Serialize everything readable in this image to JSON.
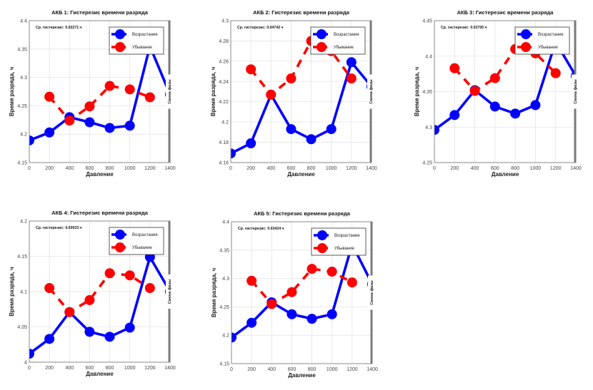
{
  "colors": {
    "increasing": "#0000ff",
    "decreasing": "#ff0000",
    "phase_line": "#7a7a7a",
    "grid": "#e3e3e3"
  },
  "chart_data": [
    {
      "type": "line",
      "title": "АКБ 1: Гистерезис времени разряда",
      "xlabel": "Давление",
      "ylabel": "Время разряда, ч",
      "xlim": [
        0,
        1400
      ],
      "ylim": [
        4.15,
        4.4
      ],
      "xticks": [
        0,
        200,
        400,
        600,
        800,
        1000,
        1200,
        1400
      ],
      "yticks": [
        4.15,
        4.2,
        4.25,
        4.3,
        4.35,
        4.4
      ],
      "ytick_labels": [
        "4.15",
        "4.2",
        "4.25",
        "4.3",
        "4.35",
        "4.4"
      ],
      "annotation": "Ср. гистерезис: 0.02271 ч",
      "phase_label": "Смена фазы",
      "phase_x": 1400,
      "grid": true,
      "legend_position": "top-right",
      "series": [
        {
          "name": "Возрастание",
          "style": "solid",
          "x": [
            0,
            200,
            400,
            600,
            800,
            1000,
            1200,
            1400
          ],
          "y": [
            4.189,
            4.203,
            4.23,
            4.221,
            4.211,
            4.215,
            4.355,
            4.27
          ]
        },
        {
          "name": "Убывание",
          "style": "dashed",
          "x": [
            200,
            400,
            600,
            800,
            1000,
            1200
          ],
          "y": [
            4.266,
            4.224,
            4.249,
            4.285,
            4.279,
            4.265
          ]
        }
      ]
    },
    {
      "type": "line",
      "title": "АКБ 2: Гистерезис времени разряда",
      "xlabel": "Давление",
      "ylabel": "Время разряда, ч",
      "xlim": [
        0,
        1400
      ],
      "ylim": [
        4.16,
        4.3
      ],
      "xticks": [
        0,
        200,
        400,
        600,
        800,
        1000,
        1200,
        1400
      ],
      "yticks": [
        4.16,
        4.18,
        4.2,
        4.22,
        4.24,
        4.26,
        4.28,
        4.3
      ],
      "ytick_labels": [
        "4.16",
        "4.18",
        "4.2",
        "4.22",
        "4.24",
        "4.26",
        "4.28",
        "4.3"
      ],
      "annotation": "Ср. гистерезис: 0.04742 ч",
      "phase_label": "Смена фазы",
      "phase_x": 1400,
      "grid": true,
      "legend_position": "top-right",
      "series": [
        {
          "name": "Возрастание",
          "style": "solid",
          "x": [
            0,
            200,
            400,
            600,
            800,
            1000,
            1200,
            1400
          ],
          "y": [
            4.169,
            4.179,
            4.227,
            4.193,
            4.183,
            4.193,
            4.259,
            4.235
          ]
        },
        {
          "name": "Убывание",
          "style": "dashed",
          "x": [
            200,
            400,
            600,
            800,
            1000,
            1200
          ],
          "y": [
            4.252,
            4.227,
            4.243,
            4.28,
            4.27,
            4.243
          ]
        }
      ]
    },
    {
      "type": "line",
      "title": "АКБ 3: Гистерезис времени разряда",
      "xlabel": "Давление",
      "ylabel": "Время разряда, ч",
      "xlim": [
        0,
        1400
      ],
      "ylim": [
        4.25,
        4.45
      ],
      "xticks": [
        0,
        200,
        400,
        600,
        800,
        1000,
        1200,
        1400
      ],
      "yticks": [
        4.25,
        4.3,
        4.35,
        4.4,
        4.45
      ],
      "ytick_labels": [
        "4.25",
        "4.3",
        "4.35",
        "4.4",
        "4.45"
      ],
      "annotation": "Ср. гистерезис: 0.03705 ч",
      "phase_label": "Смена фазы",
      "phase_x": 1400,
      "grid": true,
      "legend_position": "top-right",
      "series": [
        {
          "name": "Возрастание",
          "style": "solid",
          "x": [
            0,
            200,
            400,
            600,
            800,
            1000,
            1200,
            1400
          ],
          "y": [
            4.296,
            4.317,
            4.352,
            4.329,
            4.319,
            4.331,
            4.42,
            4.372
          ]
        },
        {
          "name": "Убывание",
          "style": "dashed",
          "x": [
            200,
            400,
            600,
            800,
            1000,
            1200
          ],
          "y": [
            4.383,
            4.351,
            4.369,
            4.41,
            4.404,
            4.376
          ]
        }
      ]
    },
    {
      "type": "line",
      "title": "АКБ 4: Гистерезис времени разряда",
      "xlabel": "Давление",
      "ylabel": "Время разряда, ч",
      "xlim": [
        0,
        1400
      ],
      "ylim": [
        4.0,
        4.2
      ],
      "xticks": [
        0,
        200,
        400,
        600,
        800,
        1000,
        1200,
        1400
      ],
      "yticks": [
        4.0,
        4.05,
        4.1,
        4.15,
        4.2
      ],
      "ytick_labels": [
        "4",
        "4.05",
        "4.1",
        "4.15",
        "4.2"
      ],
      "annotation": "Ср. гистерезис: 0.03933 ч",
      "phase_label": "Смена фазы",
      "phase_x": 1400,
      "grid": true,
      "legend_position": "top-right",
      "series": [
        {
          "name": "Возрастание",
          "style": "solid",
          "x": [
            0,
            200,
            400,
            600,
            800,
            1000,
            1200,
            1400
          ],
          "y": [
            4.012,
            4.033,
            4.071,
            4.043,
            4.036,
            4.049,
            4.149,
            4.1
          ]
        },
        {
          "name": "Убывание",
          "style": "dashed",
          "x": [
            200,
            400,
            600,
            800,
            1000,
            1200
          ],
          "y": [
            4.105,
            4.071,
            4.088,
            4.126,
            4.123,
            4.105
          ]
        }
      ]
    },
    {
      "type": "line",
      "title": "АКБ 5: Гистерезис времени разряда",
      "xlabel": "Давление",
      "ylabel": "Время разряда, ч",
      "xlim": [
        0,
        1400
      ],
      "ylim": [
        4.15,
        4.4
      ],
      "xticks": [
        0,
        200,
        400,
        600,
        800,
        1000,
        1200,
        1400
      ],
      "yticks": [
        4.15,
        4.2,
        4.25,
        4.3,
        4.35,
        4.4
      ],
      "ytick_labels": [
        "4.15",
        "4.2",
        "4.25",
        "4.3",
        "4.35",
        "4.4"
      ],
      "annotation": "Ср. гистерезис: 0.03424 ч",
      "phase_label": "Смена фазы",
      "phase_x": 1400,
      "grid": true,
      "legend_position": "top-right",
      "series": [
        {
          "name": "Возрастание",
          "style": "solid",
          "x": [
            0,
            200,
            400,
            600,
            800,
            1000,
            1200,
            1400
          ],
          "y": [
            4.196,
            4.222,
            4.258,
            4.237,
            4.229,
            4.237,
            4.36,
            4.29
          ]
        },
        {
          "name": "Убывание",
          "style": "dashed",
          "x": [
            200,
            400,
            600,
            800,
            1000,
            1200
          ],
          "y": [
            4.296,
            4.255,
            4.276,
            4.317,
            4.312,
            4.293
          ]
        }
      ]
    }
  ]
}
